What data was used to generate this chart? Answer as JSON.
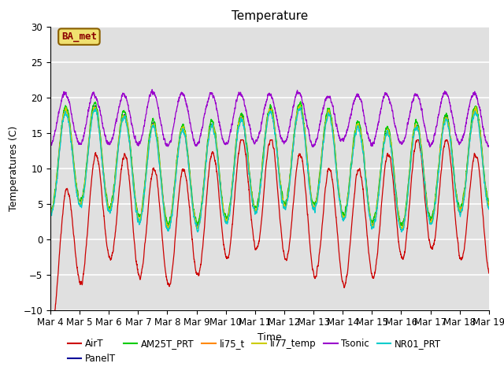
{
  "title": "Temperature",
  "xlabel": "Time",
  "ylabel": "Temperatures (C)",
  "ylim": [
    -10,
    30
  ],
  "annotation": "BA_met",
  "series_names": [
    "AirT",
    "PanelT",
    "AM25T_PRT",
    "li75_t",
    "li77_temp",
    "Tsonic",
    "NR01_PRT"
  ],
  "series_colors": [
    "#cc0000",
    "#000099",
    "#00cc00",
    "#ff8800",
    "#cccc00",
    "#9900cc",
    "#00cccc"
  ],
  "bg_color": "#e0e0e0",
  "fig_bg": "#ffffff",
  "grid_color": "#ffffff",
  "n_points": 4320,
  "seed": 7
}
